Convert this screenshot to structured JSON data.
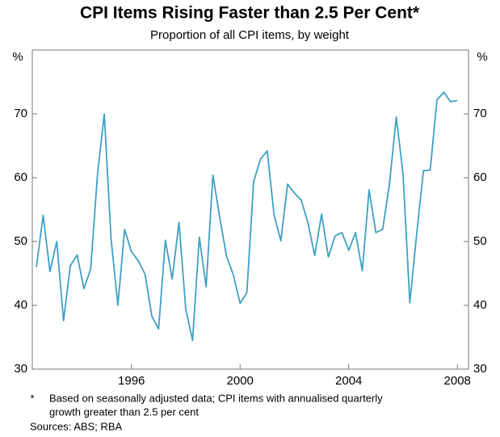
{
  "chart_data": {
    "type": "line",
    "title": "CPI Items Rising Faster than 2.5 Per Cent*",
    "subtitle": "Proportion of all CPI items, by weight",
    "y_unit": "%",
    "y2_unit": "%",
    "x": [
      1992.5,
      1992.75,
      1993,
      1993.25,
      1993.5,
      1993.75,
      1994,
      1994.25,
      1994.5,
      1994.75,
      1995,
      1995.25,
      1995.5,
      1995.75,
      1996,
      1996.25,
      1996.5,
      1996.75,
      1997,
      1997.25,
      1997.5,
      1997.75,
      1998,
      1998.25,
      1998.5,
      1998.75,
      1999,
      1999.25,
      1999.5,
      1999.75,
      2000,
      2000.25,
      2000.5,
      2000.75,
      2001,
      2001.25,
      2001.5,
      2001.75,
      2002,
      2002.25,
      2002.5,
      2002.75,
      2003,
      2003.25,
      2003.5,
      2003.75,
      2004,
      2004.25,
      2004.5,
      2004.75,
      2005,
      2005.25,
      2005.5,
      2005.75,
      2006,
      2006.25,
      2006.5,
      2006.75,
      2007,
      2007.25,
      2007.5,
      2007.75,
      2008
    ],
    "series": [
      {
        "name": "CPI items rising faster than 2.5 per cent",
        "color": "#3fa0c3",
        "values": [
          46,
          54.1,
          45.3,
          50,
          37.6,
          46.2,
          47.9,
          42.6,
          45.7,
          60.5,
          70,
          50.4,
          40,
          51.9,
          48.4,
          47,
          44.9,
          38.3,
          36.3,
          50.2,
          44.1,
          53,
          39.4,
          34.5,
          50.7,
          42.9,
          60.4,
          53.8,
          47.7,
          44.8,
          40.3,
          42,
          59.4,
          62.9,
          64.2,
          54.2,
          50.1,
          59,
          57.6,
          56.5,
          52.9,
          47.8,
          54.3,
          47.6,
          50.9,
          51.4,
          48.6,
          51.4,
          45.4,
          58.1,
          51.4,
          51.9,
          59,
          69.5,
          60.6,
          40.4,
          51.1,
          61.1,
          61.2,
          72.2,
          73.4,
          71.9,
          72.1
        ]
      }
    ],
    "xlim": [
      1992.35,
      2008.41
    ],
    "xticks": [
      1996,
      2000,
      2004,
      2008
    ],
    "ylim": [
      30,
      80
    ],
    "yticks": [
      30,
      40,
      50,
      60,
      70
    ],
    "y2lim": [
      30,
      80
    ],
    "y2ticks": [
      30,
      40,
      50,
      60,
      70
    ],
    "grid": false,
    "footnote_marker": "*",
    "footnote": "Based on seasonally adjusted data; CPI items with annualised quarterly",
    "footnote_line2": "growth greater than 2.5 per cent",
    "sources": "Sources: ABS; RBA"
  }
}
